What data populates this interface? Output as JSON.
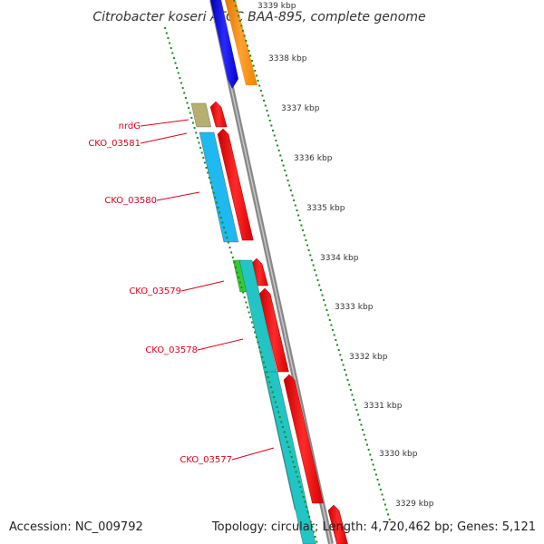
{
  "title": "Citrobacter koseri ATCC BAA-895, complete genome",
  "footer": {
    "accession": "Accession: NC_009792",
    "summary": "Topology: circular; Length: 4,720,462 bp; Genes: 5,121"
  },
  "ticks": [
    {
      "kbp": 3339,
      "label": "3339 kbp"
    },
    {
      "kbp": 3338,
      "label": "3338 kbp"
    },
    {
      "kbp": 3337,
      "label": "3337 kbp"
    },
    {
      "kbp": 3336,
      "label": "3336 kbp"
    },
    {
      "kbp": 3335,
      "label": "3335 kbp"
    },
    {
      "kbp": 3334,
      "label": "3334 kbp"
    },
    {
      "kbp": 3333,
      "label": "3333 kbp"
    },
    {
      "kbp": 3332,
      "label": "3332 kbp"
    },
    {
      "kbp": 3331,
      "label": "3331 kbp"
    },
    {
      "kbp": 3330,
      "label": "3330 kbp"
    },
    {
      "kbp": 3329,
      "label": "3329 kbp"
    }
  ],
  "genes": [
    {
      "name": "nrdG",
      "color": "#b5b070"
    },
    {
      "name": "CKO_03581",
      "color": "#1fb8f0"
    },
    {
      "name": "CKO_03580",
      "color": "#1fb8f0"
    },
    {
      "name": "CKO_03579",
      "color": "#33cc33"
    },
    {
      "name": "CKO_03578",
      "color": "#22c4c4"
    },
    {
      "name": "CKO_03577",
      "color": "#22c4c4"
    }
  ],
  "colors": {
    "cds_track": "#ff0000",
    "backbone": "#888888",
    "tick": "#1a8a1a",
    "label": "#e0001b"
  }
}
